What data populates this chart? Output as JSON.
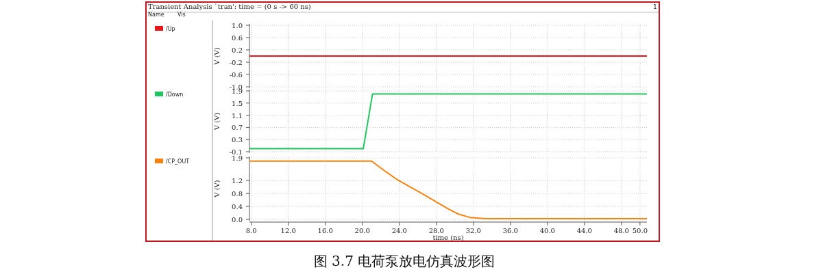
{
  "chart_data": [
    {
      "type": "line",
      "title": "Transient Analysis `tran': time = (0 s -> 60 ns)",
      "ylabel": "V (V)",
      "annotations": [
        "Name",
        "Vis",
        "1"
      ],
      "series": [
        {
          "name": "/Up",
          "color": "#e8161b",
          "x": [
            7.8,
            50.75
          ],
          "values": [
            0.0,
            0.0
          ]
        }
      ],
      "xlim": [
        7.8,
        50.75
      ],
      "xticks": [
        8,
        12,
        16,
        20,
        24,
        28,
        32,
        36,
        40,
        44,
        48,
        50
      ],
      "ylim": [
        -1.0,
        1.0
      ],
      "yticks": [
        {
          "value": 1.0,
          "label": "1.0"
        },
        {
          "value": 0.6,
          "label": "0.6"
        },
        {
          "value": 0.2,
          "label": "0.2"
        },
        {
          "value": -0.2,
          "label": "-0.2"
        },
        {
          "value": -0.6,
          "label": "-0.6"
        },
        {
          "value": -1.0,
          "label": "-1.0"
        }
      ],
      "grid": true,
      "legend": "left",
      "tick_labels": "y"
    },
    {
      "type": "line",
      "ylabel": "V (V)",
      "series": [
        {
          "name": "/Down",
          "color": "#21c45e",
          "x": [
            7.8,
            20.1,
            21.1,
            50.75
          ],
          "values": [
            0.0,
            0.0,
            1.8,
            1.8
          ]
        }
      ],
      "xlim": [
        7.8,
        50.75
      ],
      "xticks": [
        8,
        12,
        16,
        20,
        24,
        28,
        32,
        36,
        40,
        44,
        48,
        50
      ],
      "ylim": [
        -0.1,
        1.9
      ],
      "yticks": [
        1.9,
        1.5,
        1.1,
        0.7,
        0.3,
        -0.1
      ],
      "grid": true,
      "legend": "left",
      "tick_labels": "y"
    },
    {
      "type": "line",
      "xlabel": "time (ns)",
      "ylabel": "V (V)",
      "annotations": [
        "图 3.7 电荷泵放电仿真波形图"
      ],
      "series": [
        {
          "name": "/CP_OUT",
          "color": "#f7820f",
          "x": [
            7.8,
            21.0,
            22.4,
            23.8,
            26.3,
            29.3,
            30.3,
            31.6,
            33.3,
            50.75
          ],
          "values": [
            1.8,
            1.8,
            1.5,
            1.22,
            0.82,
            0.32,
            0.17,
            0.06,
            0.02,
            0.02
          ]
        }
      ],
      "xlim": [
        7.8,
        50.75
      ],
      "xticks": [
        {
          "value": 8,
          "label": "8.0"
        },
        {
          "value": 12,
          "label": "12.0"
        },
        {
          "value": 16,
          "label": "16.0"
        },
        {
          "value": 20,
          "label": "20.0"
        },
        {
          "value": 24,
          "label": "24.0"
        },
        {
          "value": 28,
          "label": "28.0"
        },
        {
          "value": 32,
          "label": "32.0"
        },
        {
          "value": 36,
          "label": "36.0"
        },
        {
          "value": 40,
          "label": "40.0"
        },
        {
          "value": 44,
          "label": "44.0"
        },
        {
          "value": 48,
          "label": "48.0"
        },
        {
          "value": 50,
          "label": "50.0"
        }
      ],
      "ylim": [
        0.0,
        1.9
      ],
      "yticks": [
        1.9,
        1.2,
        0.8,
        0.4,
        {
          "value": 0.0,
          "label": "0.0"
        }
      ],
      "grid": true,
      "legend": "left"
    }
  ]
}
